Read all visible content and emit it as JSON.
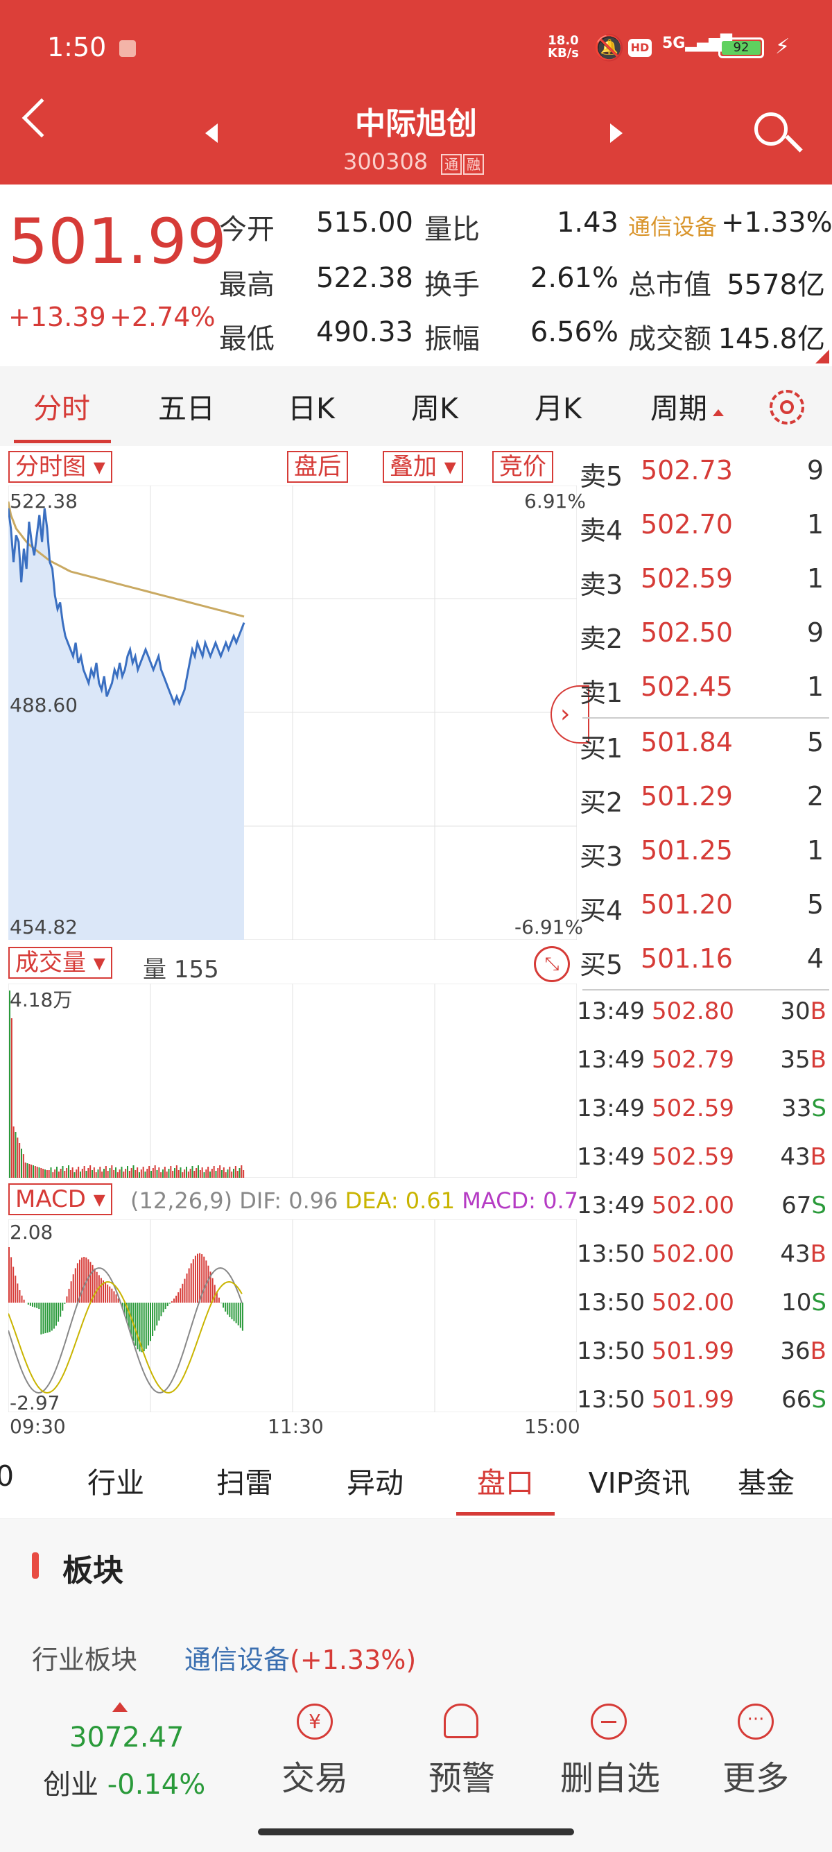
{
  "status": {
    "time": "1:50",
    "net_speed_top": "18.0",
    "net_speed_bottom": "KB/s",
    "battery": "92"
  },
  "header": {
    "name": "中际旭创",
    "code": "300308",
    "badge1": "通",
    "badge2": "融"
  },
  "quote": {
    "price": "501.99",
    "change": "+13.39",
    "change_pct": "+2.74%",
    "rows": [
      {
        "l1": "今开",
        "v1": "515.00",
        "l2": "量比",
        "v2": "1.43",
        "l3": "通信设备",
        "v3": "+1.33%"
      },
      {
        "l1": "最高",
        "v1": "522.38",
        "l2": "换手",
        "v2": "2.61%",
        "l3": "总市值",
        "v3": "5578亿"
      },
      {
        "l1": "最低",
        "v1": "490.33",
        "l2": "振幅",
        "v2": "6.56%",
        "l3": "成交额",
        "v3": "145.8亿"
      }
    ]
  },
  "tabs": [
    "分时",
    "五日",
    "日K",
    "周K",
    "月K",
    "周期"
  ],
  "chart_controls": {
    "type": "分时图",
    "after_hours": "盘后",
    "overlay": "叠加",
    "bid": "竞价"
  },
  "chart_data": {
    "type": "line",
    "y_top": "522.38",
    "y_mid": "488.60",
    "y_bottom": "454.82",
    "pct_top": "6.91%",
    "pct_bottom": "-6.91%",
    "x_labels": [
      "09:30",
      "11:30",
      "15:00"
    ],
    "price": [
      519,
      516,
      511,
      515,
      514,
      508,
      513,
      510,
      517,
      514,
      512,
      515,
      518,
      514,
      519,
      516,
      511,
      510,
      506,
      504,
      505,
      502,
      500,
      499,
      498,
      497,
      499,
      496,
      497,
      495,
      494,
      493,
      495,
      494,
      496,
      493,
      492,
      494,
      491,
      492,
      493,
      495,
      494,
      496,
      494,
      495,
      497,
      498,
      496,
      497,
      495,
      496,
      497,
      498,
      497,
      496,
      495,
      496,
      497,
      495,
      494,
      493,
      492,
      491,
      490,
      491,
      490,
      491,
      492,
      494,
      496,
      498,
      497,
      499,
      498,
      497,
      499,
      498,
      497,
      498,
      499,
      498,
      497,
      498,
      499,
      498,
      499,
      500,
      499,
      500,
      501,
      502
    ],
    "avg": [
      520,
      518,
      517,
      516,
      515.5,
      515,
      514.5,
      514,
      513.6,
      513.3,
      513,
      512.7,
      512.4,
      512.1,
      511.8,
      511.5,
      511.2,
      511,
      510.8,
      510.6,
      510.4,
      510.2,
      510,
      509.8,
      509.6,
      509.5,
      509.4,
      509.3,
      509.2,
      509.1,
      509,
      508.9,
      508.8,
      508.7,
      508.6,
      508.5,
      508.4,
      508.3,
      508.2,
      508.1,
      508,
      507.9,
      507.8,
      507.7,
      507.6,
      507.5,
      507.4,
      507.3,
      507.2,
      507.1,
      507,
      506.9,
      506.8,
      506.7,
      506.6,
      506.5,
      506.4,
      506.3,
      506.2,
      506.1,
      506,
      505.9,
      505.8,
      505.7,
      505.6,
      505.5,
      505.4,
      505.3,
      505.2,
      505.1,
      505,
      504.9,
      504.8,
      504.7,
      504.6,
      504.5,
      504.4,
      504.3,
      504.2,
      504.1,
      504,
      503.9,
      503.8,
      503.7,
      503.6,
      503.5,
      503.4,
      503.3,
      503.2,
      503.1,
      503,
      502.9
    ]
  },
  "volume": {
    "label": "成交量",
    "qty_label": "量",
    "qty": "155",
    "max": "4.18万"
  },
  "macd": {
    "label": "MACD",
    "params": "(12,26,9)",
    "dif": "DIF: 0.96",
    "dea": "DEA: 0.61",
    "macd_val": "MACD: 0.7",
    "top": "2.08",
    "bottom": "-2.97"
  },
  "orderbook": {
    "sells": [
      {
        "l": "卖5",
        "p": "502.73",
        "q": "9"
      },
      {
        "l": "卖4",
        "p": "502.70",
        "q": "1"
      },
      {
        "l": "卖3",
        "p": "502.59",
        "q": "1"
      },
      {
        "l": "卖2",
        "p": "502.50",
        "q": "9"
      },
      {
        "l": "卖1",
        "p": "502.45",
        "q": "1"
      }
    ],
    "buys": [
      {
        "l": "买1",
        "p": "501.84",
        "q": "5"
      },
      {
        "l": "买2",
        "p": "501.29",
        "q": "2"
      },
      {
        "l": "买3",
        "p": "501.25",
        "q": "1"
      },
      {
        "l": "买4",
        "p": "501.20",
        "q": "5"
      },
      {
        "l": "买5",
        "p": "501.16",
        "q": "4"
      }
    ]
  },
  "ticks": [
    {
      "t": "13:49",
      "p": "502.80",
      "v": "30",
      "s": "B"
    },
    {
      "t": "13:49",
      "p": "502.79",
      "v": "35",
      "s": "B"
    },
    {
      "t": "13:49",
      "p": "502.59",
      "v": "33",
      "s": "S"
    },
    {
      "t": "13:49",
      "p": "502.59",
      "v": "43",
      "s": "B"
    },
    {
      "t": "13:49",
      "p": "502.00",
      "v": "67",
      "s": "S"
    },
    {
      "t": "13:50",
      "p": "502.00",
      "v": "43",
      "s": "B"
    },
    {
      "t": "13:50",
      "p": "502.00",
      "v": "10",
      "s": "S"
    },
    {
      "t": "13:50",
      "p": "501.99",
      "v": "36",
      "s": "B"
    },
    {
      "t": "13:50",
      "p": "501.99",
      "v": "66",
      "s": "S"
    }
  ],
  "bottom_tabs": [
    "0",
    "行业",
    "扫雷",
    "异动",
    "盘口",
    "VIP资讯",
    "基金"
  ],
  "sector": {
    "title": "板块",
    "row_label": "行业板块",
    "link": "通信设备",
    "link_pct": "(+1.33%)"
  },
  "index": {
    "value": "3072.47",
    "name": "创业",
    "change": "-0.14%"
  },
  "nav": [
    {
      "label": "交易",
      "icon": "trade-icon"
    },
    {
      "label": "预警",
      "icon": "bell-icon"
    },
    {
      "label": "删自选",
      "icon": "minus-circle-icon"
    },
    {
      "label": "更多",
      "icon": "more-icon"
    }
  ],
  "colors": {
    "brand": "#dc3f39",
    "up": "#d63b37",
    "down": "#2a9a3a",
    "line": "#3a6fc1",
    "avg": "#c9a962"
  }
}
